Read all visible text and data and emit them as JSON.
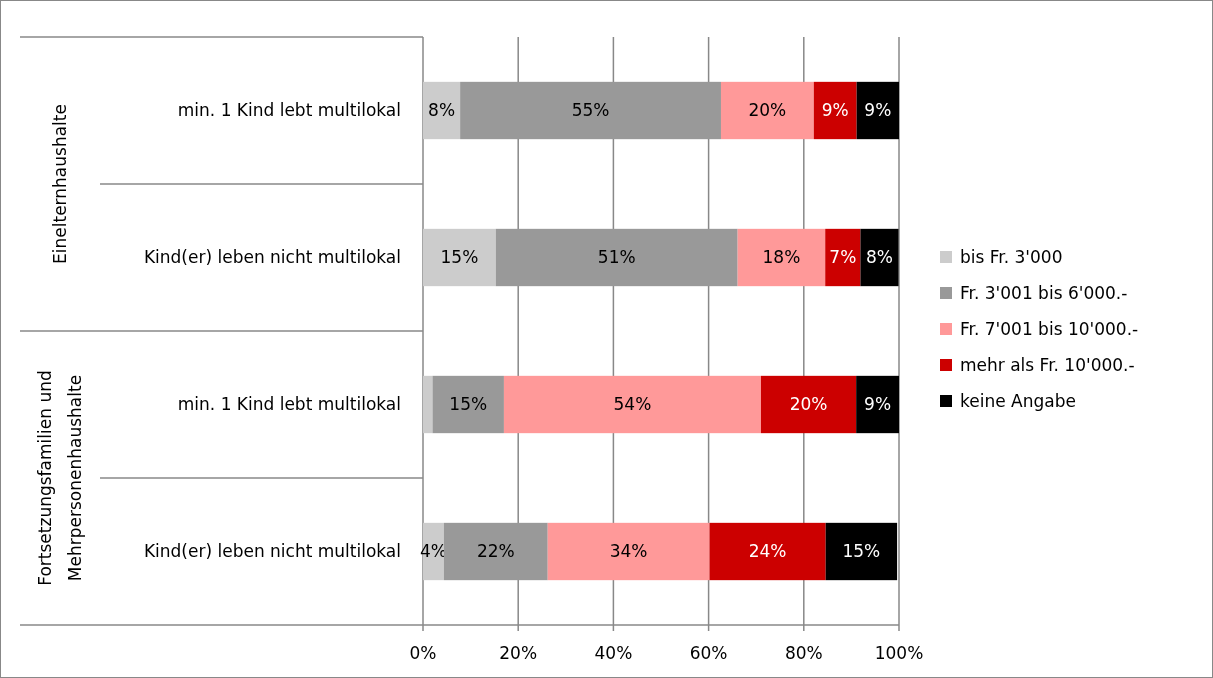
{
  "chart_data": {
    "type": "bar",
    "orientation": "horizontal",
    "stacked": true,
    "categories": [
      "min. 1 Kind lebt multilokal",
      "Kind(er) leben nicht multilokal",
      "min. 1 Kind lebt multilokal",
      "Kind(er) leben nicht multilokal"
    ],
    "series": [
      {
        "name": "bis Fr. 3'000",
        "color": "#cccccc",
        "values": [
          7.8,
          15.3,
          2,
          4.4
        ],
        "value_labels": [
          "8%",
          "15%",
          null,
          "4%"
        ]
      },
      {
        "name": "Fr. 3'001 bis 6'000.-",
        "color": "#999999",
        "values": [
          54.8,
          50.8,
          15,
          21.8
        ],
        "value_labels": [
          "55%",
          "51%",
          "15%",
          "22%"
        ]
      },
      {
        "name": "Fr. 7'001 bis 10'000.-",
        "color": "#ff9999",
        "values": [
          19.5,
          18.4,
          54,
          34
        ],
        "value_labels": [
          "20%",
          "18%",
          "54%",
          "34%"
        ]
      },
      {
        "name": "mehr als Fr. 10'000.-",
        "color": "#cc0000",
        "values": [
          9,
          7.4,
          20,
          24.4
        ],
        "value_labels": [
          "9%",
          "7%",
          "20%",
          "24%"
        ]
      },
      {
        "name": "keine Angabe",
        "color": "#000000",
        "values": [
          8.9,
          8,
          9,
          15
        ],
        "value_labels": [
          "9%",
          "8%",
          "9%",
          "15%"
        ]
      }
    ],
    "xlim": [
      0,
      100
    ],
    "xticks": [
      {
        "value": 0,
        "label": "0%"
      },
      {
        "value": 20,
        "label": "20%"
      },
      {
        "value": 40,
        "label": "40%"
      },
      {
        "value": 60,
        "label": "60%"
      },
      {
        "value": 80,
        "label": "80%"
      },
      {
        "value": 100,
        "label": "100%"
      }
    ],
    "grid": "x",
    "legend": "right",
    "annotations": [
      "Einelternhaushalte",
      "Fortsetzungsfamilien und Mehrpersonenhaushalte"
    ]
  }
}
